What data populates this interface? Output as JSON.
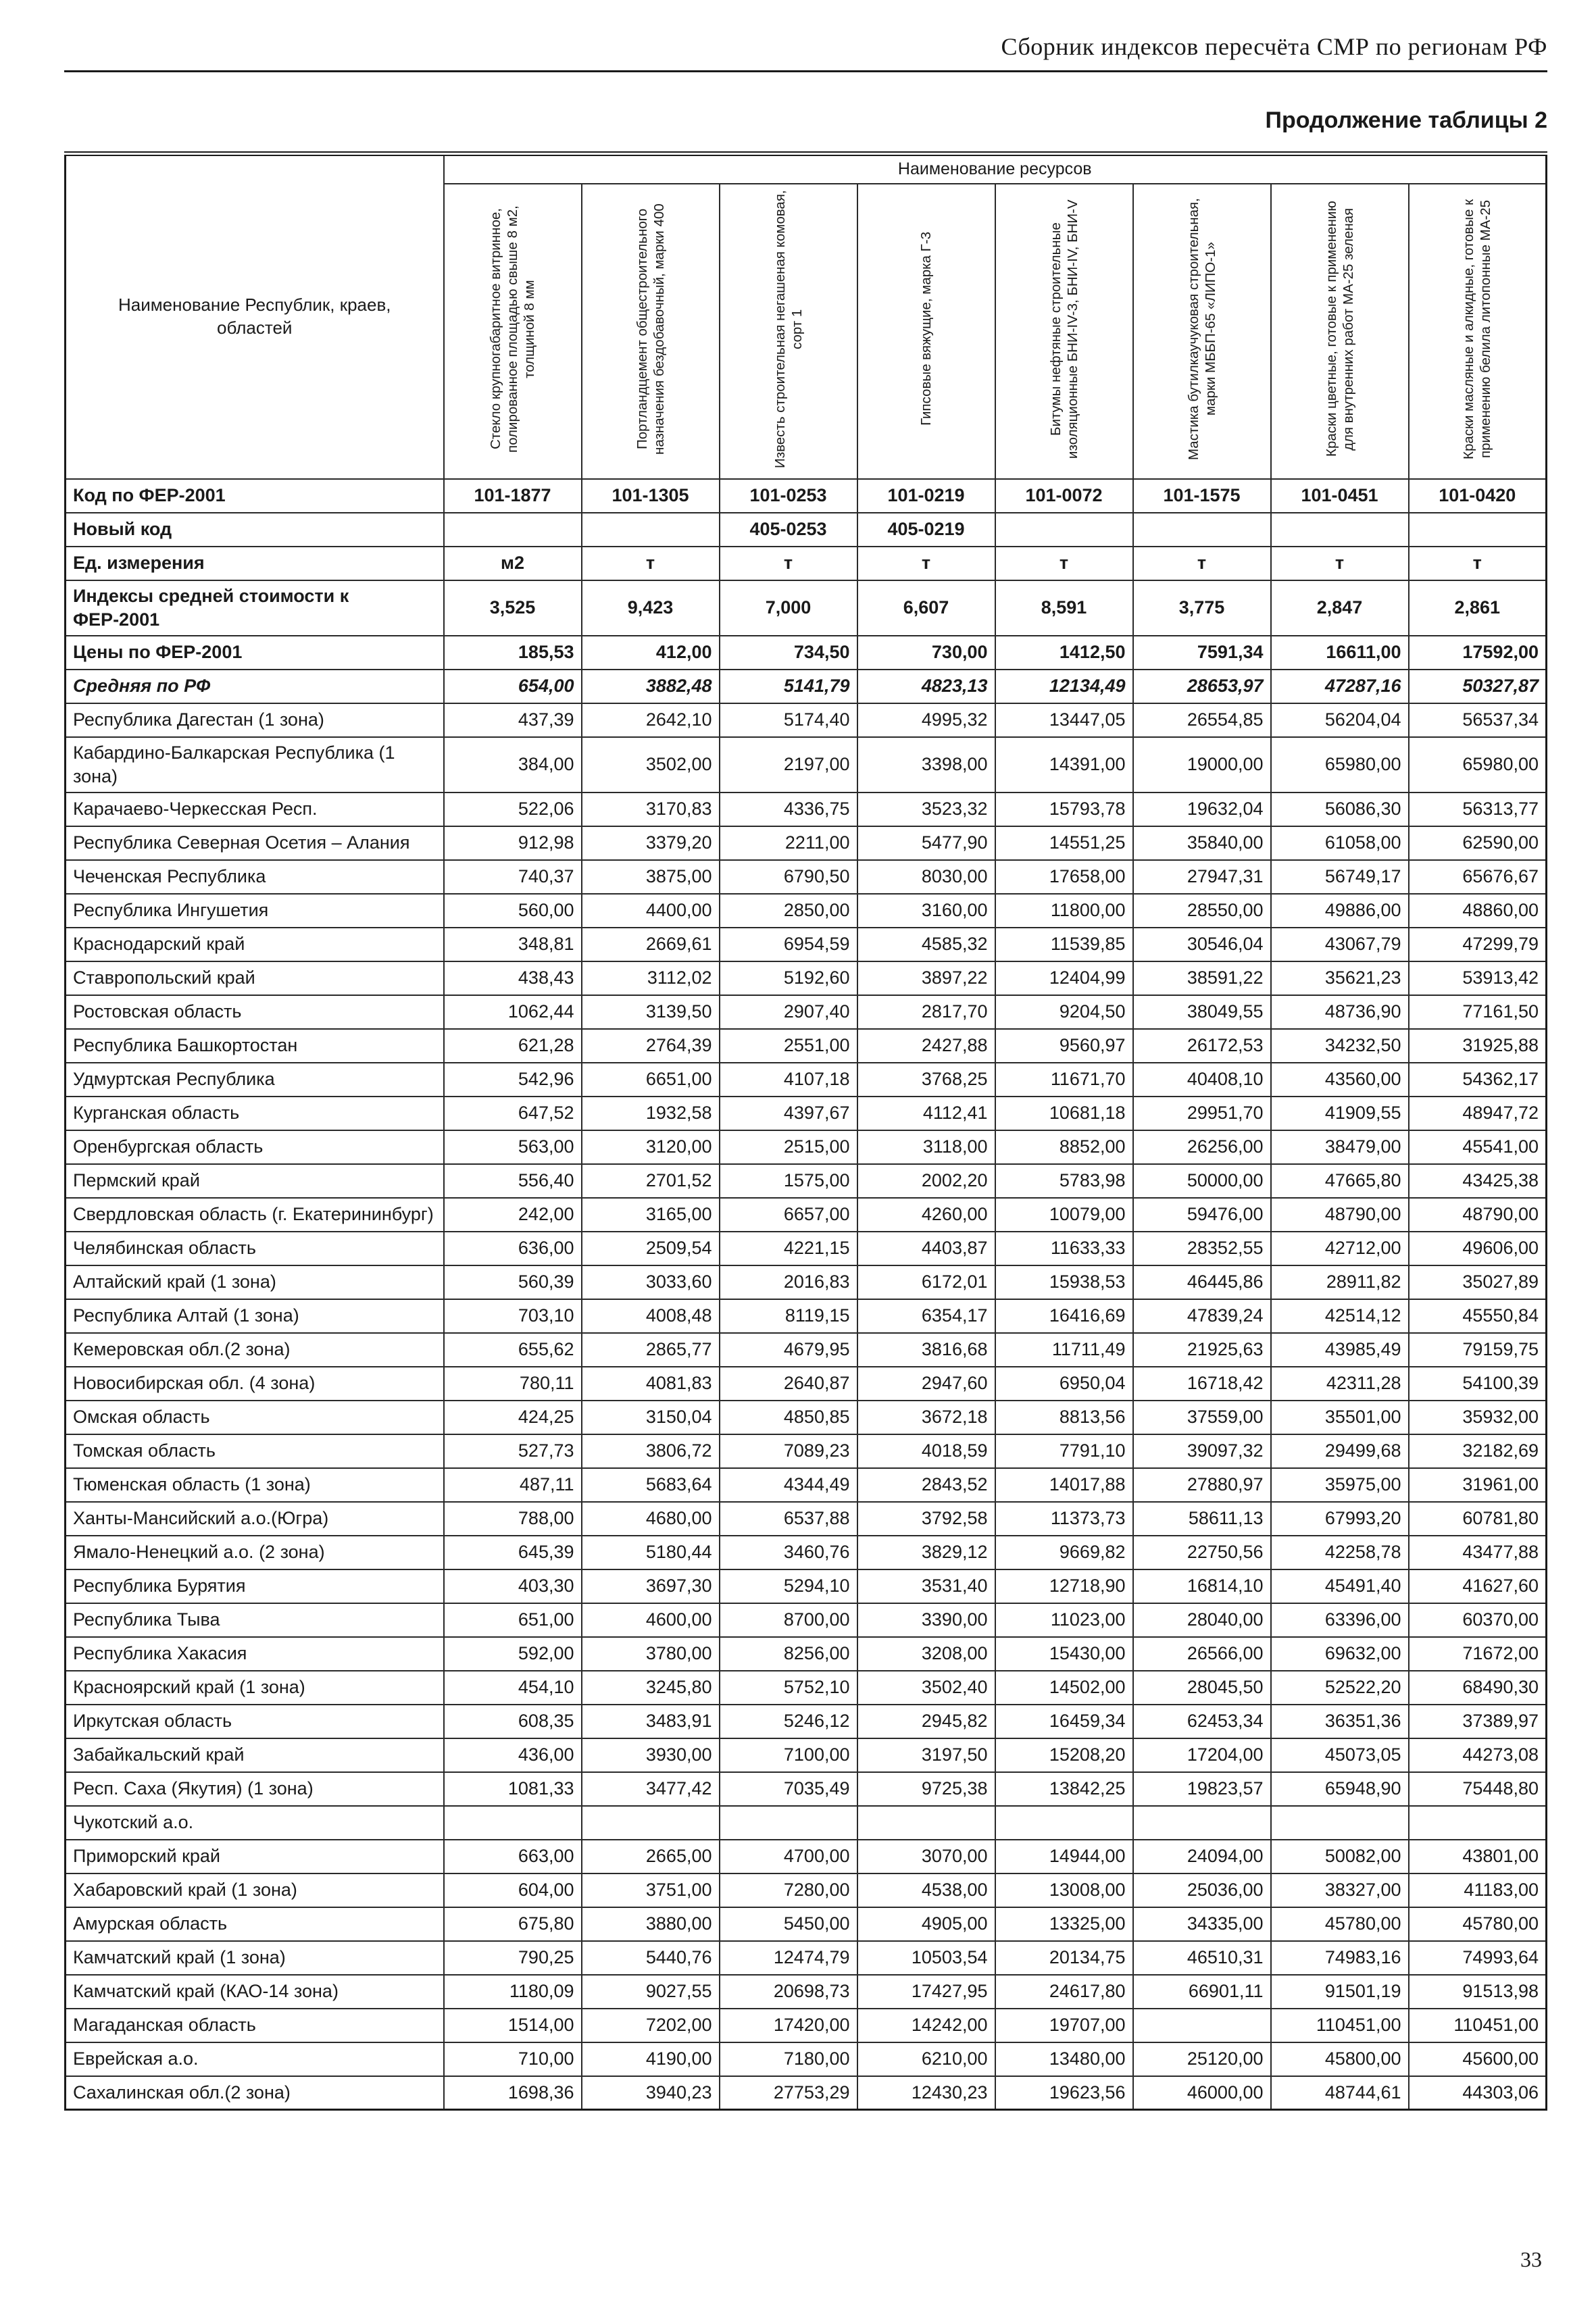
{
  "page": {
    "doc_header": "Сборник индексов пересчёта СМР по регионам РФ",
    "table_caption": "Продолжение таблицы 2",
    "page_number": "33"
  },
  "table": {
    "resources_title": "Наименование ресурсов",
    "row_header": "Наименование Республик, краев, областей",
    "columns": [
      "Стекло крупногабаритное витринное, полированное площадью свыше 8 м2, толщиной 8 мм",
      "Портландцемент общестроительного назначения бездобавочный, марки 400",
      "Известь строительная негашеная комовая, сорт 1",
      "Гипсовые вяжущие, марка Г-3",
      "Битумы нефтяные строительные изоляционные БНИ-IV-3, БНИ-IV, БНИ-V",
      "Мастика бутилкаучуковая строительная, марки МББП-65 «ЛИПО-1»",
      "Краски цветные, готовые к применению для внутренних работ МА-25 зеленая",
      "Краски масляные и алкидные, готовые к применению белила литопонные МА-25"
    ],
    "meta_rows": [
      {
        "type": "code",
        "label": "Код по ФЕР-2001",
        "values": [
          "101-1877",
          "101-1305",
          "101-0253",
          "101-0219",
          "101-0072",
          "101-1575",
          "101-0451",
          "101-0420"
        ]
      },
      {
        "type": "code",
        "label": "Новый код",
        "values": [
          "",
          "",
          "405-0253",
          "405-0219",
          "",
          "",
          "",
          ""
        ]
      },
      {
        "type": "unit",
        "label": "Ед. измерения",
        "values": [
          "м2",
          "т",
          "т",
          "т",
          "т",
          "т",
          "т",
          "т"
        ]
      },
      {
        "type": "index",
        "label": "Индексы средней стоимости к ФЕР-2001",
        "values": [
          "3,525",
          "9,423",
          "7,000",
          "6,607",
          "8,591",
          "3,775",
          "2,847",
          "2,861"
        ]
      },
      {
        "type": "price",
        "label": "Цены по ФЕР-2001",
        "values": [
          "185,53",
          "412,00",
          "734,50",
          "730,00",
          "1412,50",
          "7591,34",
          "16611,00",
          "17592,00"
        ]
      },
      {
        "type": "average",
        "label": "Средняя по РФ",
        "values": [
          "654,00",
          "3882,48",
          "5141,79",
          "4823,13",
          "12134,49",
          "28653,97",
          "47287,16",
          "50327,87"
        ]
      }
    ],
    "region_rows": [
      {
        "label": "Республика Дагестан (1 зона)",
        "values": [
          "437,39",
          "2642,10",
          "5174,40",
          "4995,32",
          "13447,05",
          "26554,85",
          "56204,04",
          "56537,34"
        ]
      },
      {
        "label": "Кабардино-Балкарская Республика (1 зона)",
        "values": [
          "384,00",
          "3502,00",
          "2197,00",
          "3398,00",
          "14391,00",
          "19000,00",
          "65980,00",
          "65980,00"
        ]
      },
      {
        "label": "Карачаево-Черкесская Респ.",
        "values": [
          "522,06",
          "3170,83",
          "4336,75",
          "3523,32",
          "15793,78",
          "19632,04",
          "56086,30",
          "56313,77"
        ]
      },
      {
        "label": "Республика Северная Осетия – Алания",
        "values": [
          "912,98",
          "3379,20",
          "2211,00",
          "5477,90",
          "14551,25",
          "35840,00",
          "61058,00",
          "62590,00"
        ]
      },
      {
        "label": "Чеченская Республика",
        "values": [
          "740,37",
          "3875,00",
          "6790,50",
          "8030,00",
          "17658,00",
          "27947,31",
          "56749,17",
          "65676,67"
        ]
      },
      {
        "label": "Республика Ингушетия",
        "values": [
          "560,00",
          "4400,00",
          "2850,00",
          "3160,00",
          "11800,00",
          "28550,00",
          "49886,00",
          "48860,00"
        ]
      },
      {
        "label": "Краснодарский край",
        "values": [
          "348,81",
          "2669,61",
          "6954,59",
          "4585,32",
          "11539,85",
          "30546,04",
          "43067,79",
          "47299,79"
        ]
      },
      {
        "label": "Ставропольский край",
        "values": [
          "438,43",
          "3112,02",
          "5192,60",
          "3897,22",
          "12404,99",
          "38591,22",
          "35621,23",
          "53913,42"
        ]
      },
      {
        "label": "Ростовская область",
        "values": [
          "1062,44",
          "3139,50",
          "2907,40",
          "2817,70",
          "9204,50",
          "38049,55",
          "48736,90",
          "77161,50"
        ]
      },
      {
        "label": "Республика Башкортостан",
        "values": [
          "621,28",
          "2764,39",
          "2551,00",
          "2427,88",
          "9560,97",
          "26172,53",
          "34232,50",
          "31925,88"
        ]
      },
      {
        "label": "Удмуртская Республика",
        "values": [
          "542,96",
          "6651,00",
          "4107,18",
          "3768,25",
          "11671,70",
          "40408,10",
          "43560,00",
          "54362,17"
        ]
      },
      {
        "label": "Курганская область",
        "values": [
          "647,52",
          "1932,58",
          "4397,67",
          "4112,41",
          "10681,18",
          "29951,70",
          "41909,55",
          "48947,72"
        ]
      },
      {
        "label": "Оренбургская область",
        "values": [
          "563,00",
          "3120,00",
          "2515,00",
          "3118,00",
          "8852,00",
          "26256,00",
          "38479,00",
          "45541,00"
        ]
      },
      {
        "label": "Пермский край",
        "values": [
          "556,40",
          "2701,52",
          "1575,00",
          "2002,20",
          "5783,98",
          "50000,00",
          "47665,80",
          "43425,38"
        ]
      },
      {
        "label": "Свердловская область (г. Екатерининбург)",
        "values": [
          "242,00",
          "3165,00",
          "6657,00",
          "4260,00",
          "10079,00",
          "59476,00",
          "48790,00",
          "48790,00"
        ]
      },
      {
        "label": "Челябинская область",
        "values": [
          "636,00",
          "2509,54",
          "4221,15",
          "4403,87",
          "11633,33",
          "28352,55",
          "42712,00",
          "49606,00"
        ]
      },
      {
        "label": "Алтайский край (1 зона)",
        "values": [
          "560,39",
          "3033,60",
          "2016,83",
          "6172,01",
          "15938,53",
          "46445,86",
          "28911,82",
          "35027,89"
        ]
      },
      {
        "label": "Республика Алтай (1 зона)",
        "values": [
          "703,10",
          "4008,48",
          "8119,15",
          "6354,17",
          "16416,69",
          "47839,24",
          "42514,12",
          "45550,84"
        ]
      },
      {
        "label": "Кемеровская обл.(2 зона)",
        "values": [
          "655,62",
          "2865,77",
          "4679,95",
          "3816,68",
          "11711,49",
          "21925,63",
          "43985,49",
          "79159,75"
        ]
      },
      {
        "label": "Новосибирская обл. (4 зона)",
        "values": [
          "780,11",
          "4081,83",
          "2640,87",
          "2947,60",
          "6950,04",
          "16718,42",
          "42311,28",
          "54100,39"
        ]
      },
      {
        "label": "Омская область",
        "values": [
          "424,25",
          "3150,04",
          "4850,85",
          "3672,18",
          "8813,56",
          "37559,00",
          "35501,00",
          "35932,00"
        ]
      },
      {
        "label": "Томская область",
        "values": [
          "527,73",
          "3806,72",
          "7089,23",
          "4018,59",
          "7791,10",
          "39097,32",
          "29499,68",
          "32182,69"
        ]
      },
      {
        "label": "Тюменская область (1 зона)",
        "values": [
          "487,11",
          "5683,64",
          "4344,49",
          "2843,52",
          "14017,88",
          "27880,97",
          "35975,00",
          "31961,00"
        ]
      },
      {
        "label": "Ханты-Мансийский а.о.(Югра)",
        "values": [
          "788,00",
          "4680,00",
          "6537,88",
          "3792,58",
          "11373,73",
          "58611,13",
          "67993,20",
          "60781,80"
        ]
      },
      {
        "label": "Ямало-Ненецкий а.о. (2 зона)",
        "values": [
          "645,39",
          "5180,44",
          "3460,76",
          "3829,12",
          "9669,82",
          "22750,56",
          "42258,78",
          "43477,88"
        ]
      },
      {
        "label": "Республика Бурятия",
        "values": [
          "403,30",
          "3697,30",
          "5294,10",
          "3531,40",
          "12718,90",
          "16814,10",
          "45491,40",
          "41627,60"
        ]
      },
      {
        "label": "Республика Тыва",
        "values": [
          "651,00",
          "4600,00",
          "8700,00",
          "3390,00",
          "11023,00",
          "28040,00",
          "63396,00",
          "60370,00"
        ]
      },
      {
        "label": "Республика Хакасия",
        "values": [
          "592,00",
          "3780,00",
          "8256,00",
          "3208,00",
          "15430,00",
          "26566,00",
          "69632,00",
          "71672,00"
        ]
      },
      {
        "label": "Красноярский край (1 зона)",
        "values": [
          "454,10",
          "3245,80",
          "5752,10",
          "3502,40",
          "14502,00",
          "28045,50",
          "52522,20",
          "68490,30"
        ]
      },
      {
        "label": "Иркутская область",
        "values": [
          "608,35",
          "3483,91",
          "5246,12",
          "2945,82",
          "16459,34",
          "62453,34",
          "36351,36",
          "37389,97"
        ]
      },
      {
        "label": "Забайкальский край",
        "values": [
          "436,00",
          "3930,00",
          "7100,00",
          "3197,50",
          "15208,20",
          "17204,00",
          "45073,05",
          "44273,08"
        ]
      },
      {
        "label": "Респ. Саха (Якутия) (1 зона)",
        "values": [
          "1081,33",
          "3477,42",
          "7035,49",
          "9725,38",
          "13842,25",
          "19823,57",
          "65948,90",
          "75448,80"
        ]
      },
      {
        "label": "Чукотский а.о.",
        "values": [
          "",
          "",
          "",
          "",
          "",
          "",
          "",
          ""
        ]
      },
      {
        "label": "Приморский край",
        "values": [
          "663,00",
          "2665,00",
          "4700,00",
          "3070,00",
          "14944,00",
          "24094,00",
          "50082,00",
          "43801,00"
        ]
      },
      {
        "label": "Хабаровский край (1 зона)",
        "values": [
          "604,00",
          "3751,00",
          "7280,00",
          "4538,00",
          "13008,00",
          "25036,00",
          "38327,00",
          "41183,00"
        ]
      },
      {
        "label": "Амурская область",
        "values": [
          "675,80",
          "3880,00",
          "5450,00",
          "4905,00",
          "13325,00",
          "34335,00",
          "45780,00",
          "45780,00"
        ]
      },
      {
        "label": "Камчатский край (1 зона)",
        "values": [
          "790,25",
          "5440,76",
          "12474,79",
          "10503,54",
          "20134,75",
          "46510,31",
          "74983,16",
          "74993,64"
        ]
      },
      {
        "label": "Камчатский край (КАО-14 зона)",
        "values": [
          "1180,09",
          "9027,55",
          "20698,73",
          "17427,95",
          "24617,80",
          "66901,11",
          "91501,19",
          "91513,98"
        ]
      },
      {
        "label": "Магаданская область",
        "values": [
          "1514,00",
          "7202,00",
          "17420,00",
          "14242,00",
          "19707,00",
          "",
          "110451,00",
          "110451,00"
        ]
      },
      {
        "label": "Еврейская а.о.",
        "values": [
          "710,00",
          "4190,00",
          "7180,00",
          "6210,00",
          "13480,00",
          "25120,00",
          "45800,00",
          "45600,00"
        ]
      },
      {
        "label": "Сахалинская обл.(2 зона)",
        "values": [
          "1698,36",
          "3940,23",
          "27753,29",
          "12430,23",
          "19623,56",
          "46000,00",
          "48744,61",
          "44303,06"
        ]
      }
    ]
  }
}
